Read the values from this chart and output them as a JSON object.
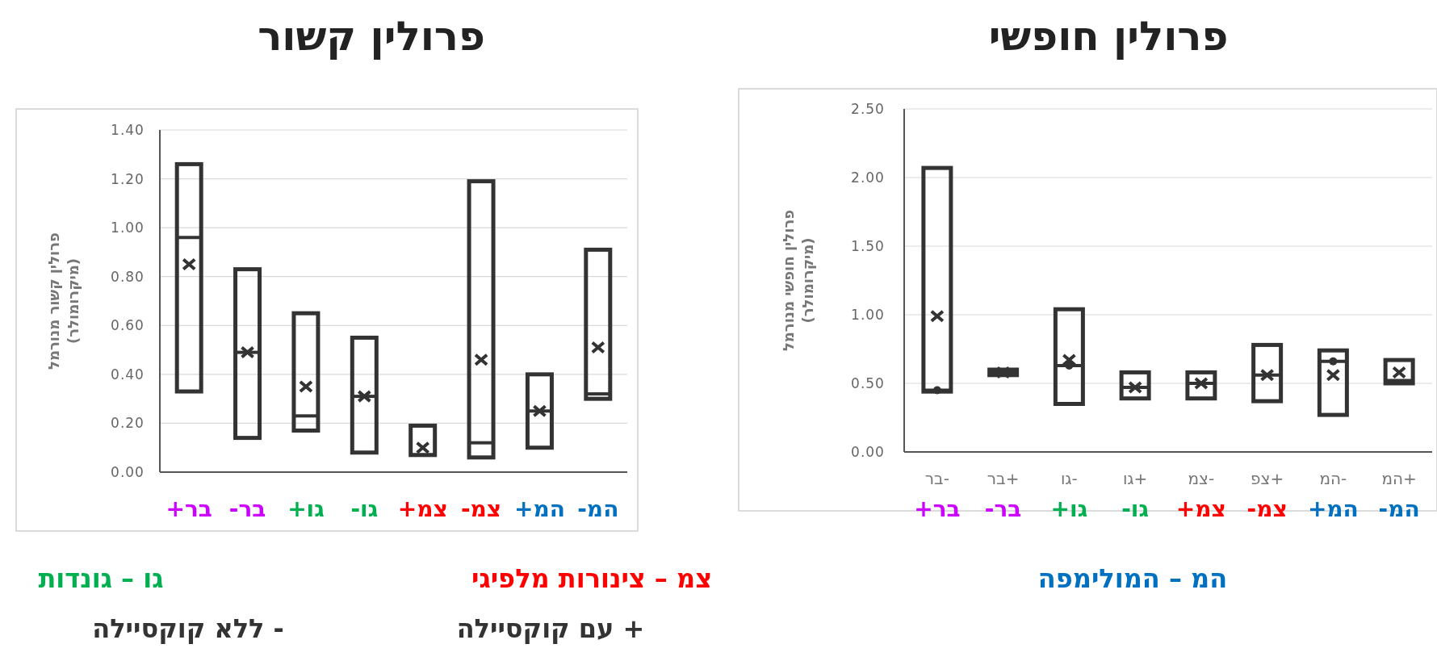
{
  "chart_data": [
    {
      "type": "box",
      "title": "פרולין חופשי",
      "ylabel": "פרולין חופשי מנורמל\n(מיקרומולר)",
      "categories": [
        "-בר",
        "+בר",
        "-גו",
        "+גו",
        "-צמ",
        "+צפ",
        "-המ",
        "+המ"
      ],
      "ylim": [
        0,
        2.5
      ],
      "yticks": [
        {
          "value": 0,
          "label": "0.00"
        },
        {
          "value": 0.5,
          "label": "0.50"
        },
        {
          "value": 1,
          "label": "1.00"
        },
        {
          "value": 1.5,
          "label": "1.50"
        },
        {
          "value": 2,
          "label": "2.00"
        },
        {
          "value": 2.5,
          "label": "2.50"
        }
      ],
      "grid": "y",
      "marker": "circle",
      "series": [
        {
          "type": "scatter",
          "color": "#333333",
          "x": [
            "-בר",
            "-גו",
            "-המ"
          ],
          "values": [
            0.45,
            0.63,
            0.66
          ]
        }
      ],
      "boxes": [
        {
          "low": 0.44,
          "q1": 0.44,
          "median": 0.45,
          "q3": 2.07,
          "high": 2.07,
          "mean": 0.99
        },
        {
          "low": 0.56,
          "q1": 0.56,
          "median": 0.58,
          "q3": 0.6,
          "high": 0.6,
          "mean": 0.58
        },
        {
          "low": 0.35,
          "q1": 0.35,
          "median": 0.63,
          "q3": 1.04,
          "high": 1.04,
          "mean": 0.67
        },
        {
          "low": 0.39,
          "q1": 0.39,
          "median": 0.47,
          "q3": 0.58,
          "high": 0.58,
          "mean": 0.47
        },
        {
          "low": 0.39,
          "q1": 0.39,
          "median": 0.5,
          "q3": 0.58,
          "high": 0.58,
          "mean": 0.5
        },
        {
          "low": 0.37,
          "q1": 0.37,
          "median": 0.56,
          "q3": 0.78,
          "high": 0.78,
          "mean": 0.56
        },
        {
          "low": 0.27,
          "q1": 0.27,
          "median": 0.66,
          "q3": 0.74,
          "high": 0.74,
          "mean": 0.56
        },
        {
          "low": 0.5,
          "q1": 0.5,
          "median": 0.52,
          "q3": 0.67,
          "high": 0.67,
          "mean": 0.58
        }
      ],
      "annotations": [
        "בר+",
        "בר-",
        "גו+",
        "גו-",
        "צמ+",
        "צמ-",
        "המ+",
        "המ-"
      ]
    },
    {
      "type": "box",
      "title": "פרולין קשור",
      "ylabel": "פרולין קשור מנורמל\n(מיקרומולר)",
      "categories": [
        "בר+",
        "בר-",
        "גו+",
        "גו-",
        "צמ+",
        "צמ-",
        "המ+",
        "המ-"
      ],
      "ylim": [
        0,
        1.4
      ],
      "yticks": [
        {
          "value": 0,
          "label": "0.00"
        },
        {
          "value": 0.2,
          "label": "0.20"
        },
        {
          "value": 0.4,
          "label": "0.40"
        },
        {
          "value": 0.6,
          "label": "0.60"
        },
        {
          "value": 0.8,
          "label": "0.80"
        },
        {
          "value": 1,
          "label": "1.00"
        },
        {
          "value": 1.2,
          "label": "1.20"
        },
        {
          "value": 1.4,
          "label": "1.40"
        }
      ],
      "grid": "y",
      "boxes": [
        {
          "low": 0.33,
          "q1": 0.33,
          "median": 0.96,
          "q3": 1.26,
          "high": 1.26,
          "mean": 0.85
        },
        {
          "low": 0.14,
          "q1": 0.14,
          "median": 0.49,
          "q3": 0.83,
          "high": 0.83,
          "mean": 0.49
        },
        {
          "low": 0.17,
          "q1": 0.17,
          "median": 0.23,
          "q3": 0.65,
          "high": 0.65,
          "mean": 0.35
        },
        {
          "low": 0.08,
          "q1": 0.08,
          "median": 0.31,
          "q3": 0.55,
          "high": 0.55,
          "mean": 0.31
        },
        {
          "low": 0.07,
          "q1": 0.07,
          "median": 0.07,
          "q3": 0.19,
          "high": 0.19,
          "mean": 0.1
        },
        {
          "low": 0.06,
          "q1": 0.06,
          "median": 0.12,
          "q3": 1.19,
          "high": 1.19,
          "mean": 0.46
        },
        {
          "low": 0.1,
          "q1": 0.1,
          "median": 0.25,
          "q3": 0.4,
          "high": 0.4,
          "mean": 0.25
        },
        {
          "low": 0.3,
          "q1": 0.3,
          "median": 0.32,
          "q3": 0.91,
          "high": 0.91,
          "mean": 0.51
        }
      ]
    },
    {
      "type": "other",
      "annotations": [
        "המ – המולימפה",
        "צמ – צינורות מלפיגי",
        "גו – גונדות",
        "+ עם קוקסיילה",
        "- ללא קוקסיילה"
      ]
    }
  ]
}
